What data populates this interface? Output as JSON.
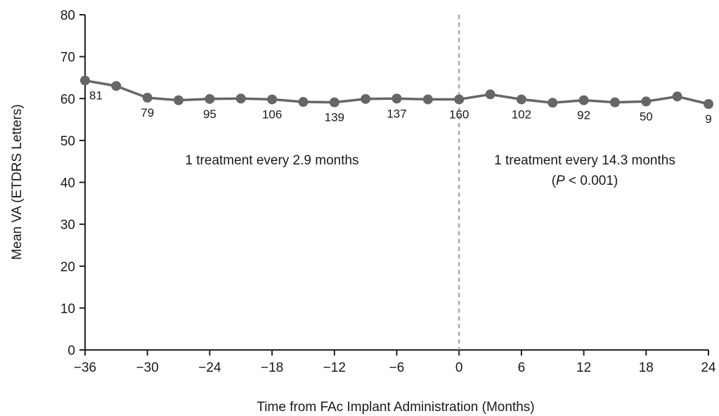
{
  "colors": {
    "series": "#666666",
    "axis": "#222222",
    "divider": "#9a9a9a",
    "text": "#1a1a1a"
  },
  "chart_data": {
    "type": "line",
    "title": "",
    "xlabel": "Time from FAc Implant Administration (Months)",
    "ylabel": "Mean VA (ETDRS Letters)",
    "xlim": [
      -36,
      24
    ],
    "ylim": [
      0,
      80
    ],
    "xticks": [
      -36,
      -30,
      -24,
      -18,
      -12,
      -6,
      0,
      6,
      12,
      18,
      24
    ],
    "xtick_labels": [
      "−36",
      "−30",
      "−24",
      "−18",
      "−12",
      "−6",
      "0",
      "6",
      "12",
      "18",
      "24"
    ],
    "yticks": [
      0,
      10,
      20,
      30,
      40,
      50,
      60,
      70,
      80
    ],
    "ytick_labels": [
      "0",
      "10",
      "20",
      "30",
      "40",
      "50",
      "60",
      "70",
      "80"
    ],
    "grid": false,
    "series": [
      {
        "x": [
          -36,
          -33,
          -30,
          -27,
          -24,
          -21,
          -18,
          -15,
          -12,
          -9,
          -6,
          -3,
          0,
          3,
          6,
          9,
          12,
          15,
          18,
          21,
          24
        ],
        "y": [
          64.3,
          63.0,
          60.2,
          59.6,
          59.9,
          60.0,
          59.8,
          59.2,
          59.1,
          59.9,
          60.0,
          59.8,
          59.8,
          61.0,
          59.8,
          59.0,
          59.6,
          59.1,
          59.3,
          60.5,
          58.7
        ]
      }
    ],
    "vline": {
      "x": 0,
      "style": "dashed"
    },
    "counts": [
      {
        "x": -36,
        "text": "81"
      },
      {
        "x": -30,
        "text": "79"
      },
      {
        "x": -24,
        "text": "95"
      },
      {
        "x": -18,
        "text": "106"
      },
      {
        "x": -12,
        "text": "139"
      },
      {
        "x": -6,
        "text": "137"
      },
      {
        "x": 0,
        "text": "160"
      },
      {
        "x": 6,
        "text": "102"
      },
      {
        "x": 12,
        "text": "92"
      },
      {
        "x": 18,
        "text": "50"
      },
      {
        "x": 24,
        "text": "9"
      }
    ],
    "annotations": {
      "left": "1 treatment every 2.9 months",
      "right_line1": "1 treatment every 14.3 months",
      "right_p_symbol": "P",
      "right_p_rest": " < 0.001)",
      "right_p_open": "("
    }
  }
}
